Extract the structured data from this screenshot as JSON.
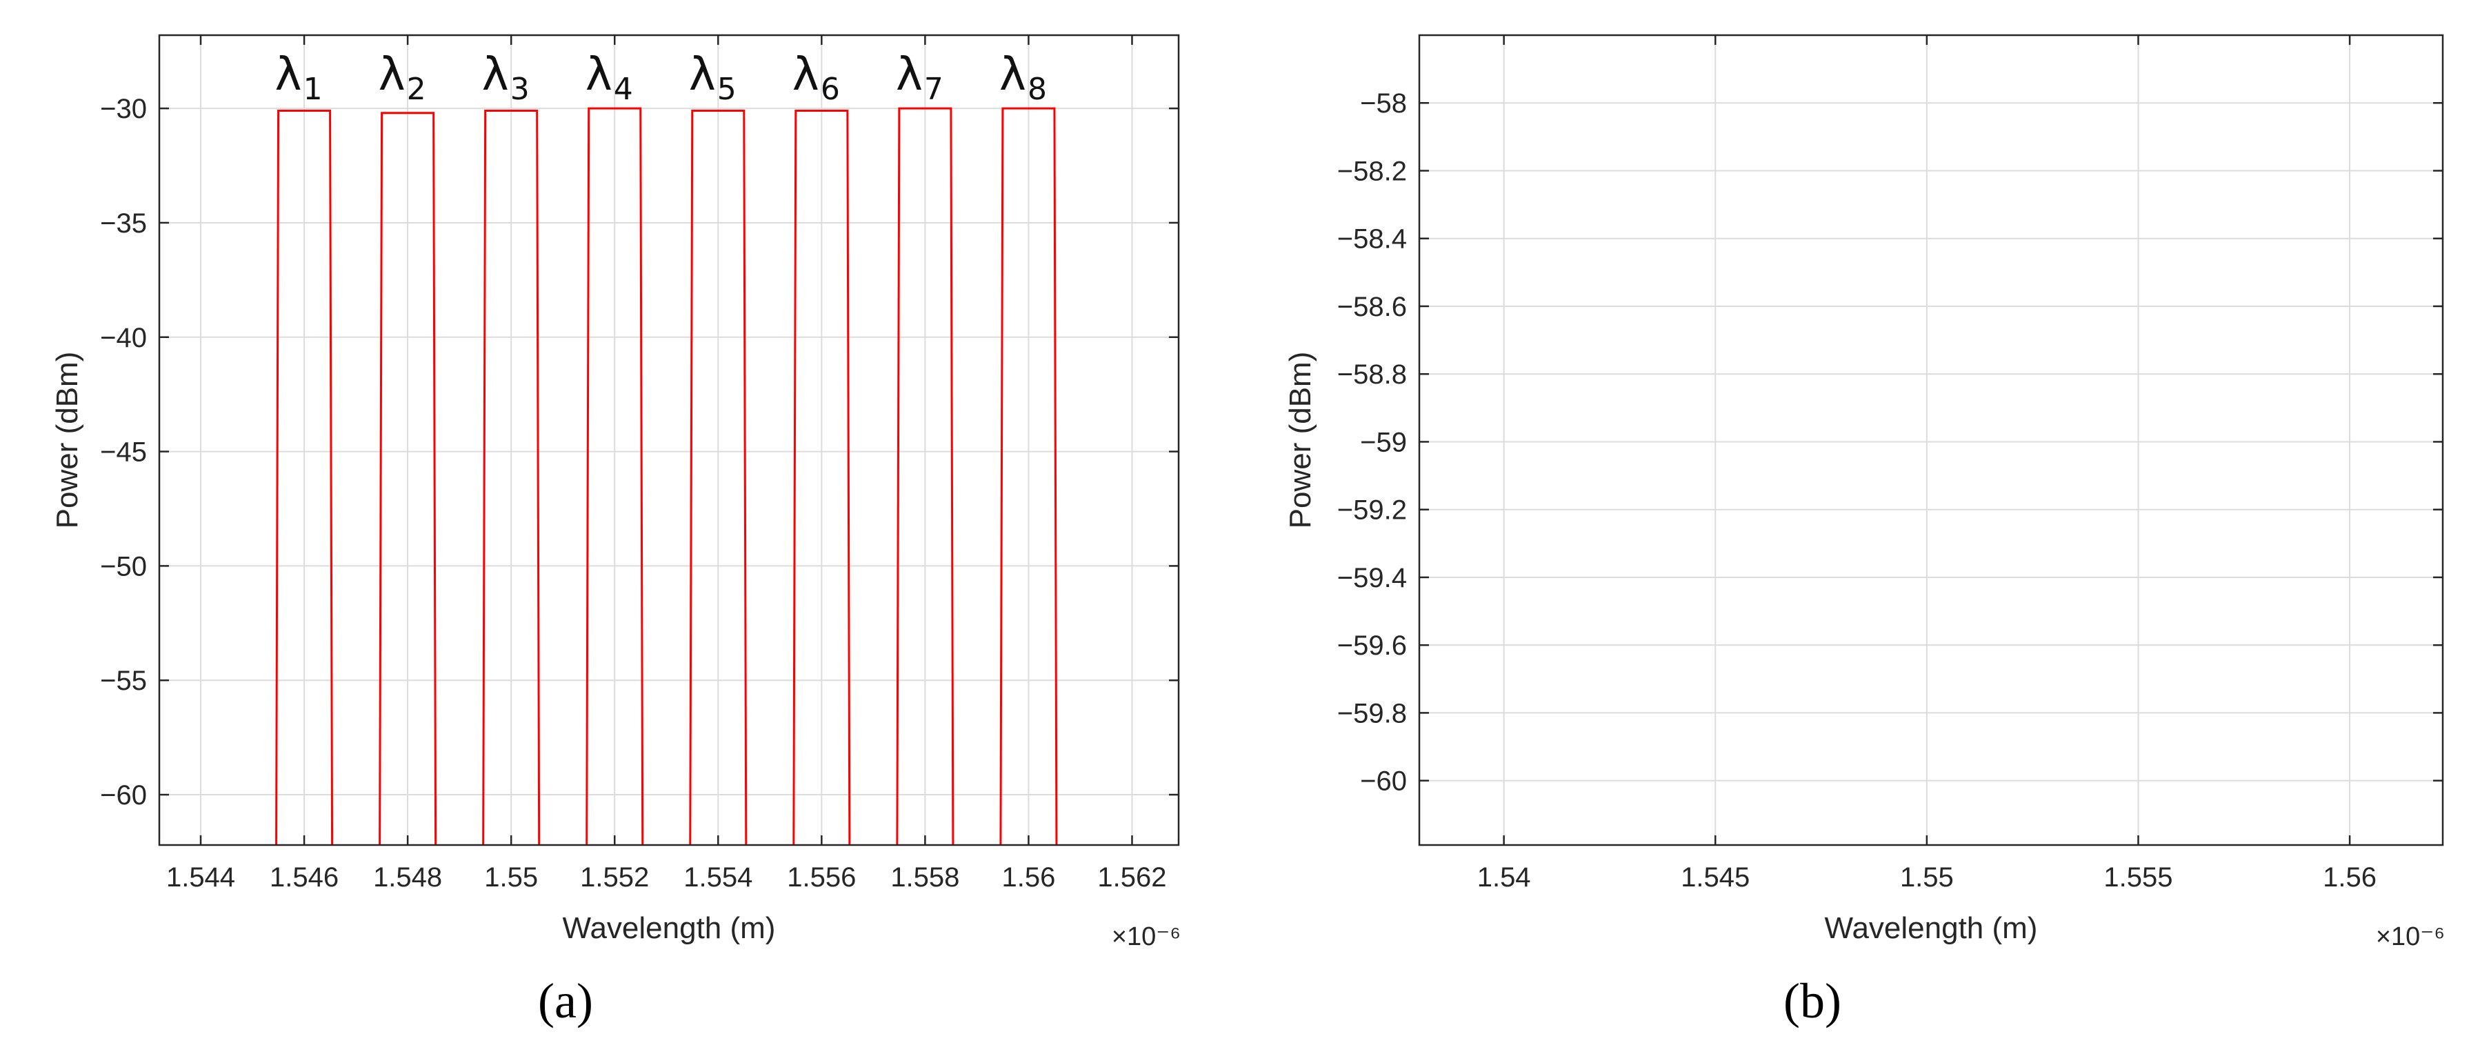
{
  "chart_data": [
    {
      "type": "line",
      "panel": "(a)",
      "xlabel": "Wavelength (m)",
      "ylabel": "Power (dBm)",
      "x_exponent": "×10⁻⁶",
      "xlim": [
        1.5432,
        1.5629
      ],
      "ylim": [
        -62.2,
        -26.8
      ],
      "xticks": [
        1.544,
        1.546,
        1.548,
        1.55,
        1.552,
        1.554,
        1.556,
        1.558,
        1.56,
        1.562
      ],
      "xticklabels": [
        "1.544",
        "1.546",
        "1.548",
        "1.55",
        "1.552",
        "1.554",
        "1.556",
        "1.558",
        "1.56",
        "1.562"
      ],
      "yticks": [
        -30,
        -35,
        -40,
        -45,
        -50,
        -55,
        -60
      ],
      "yticklabels": [
        "−30",
        "−35",
        "−40",
        "−45",
        "−50",
        "−55",
        "−60"
      ],
      "grid": true,
      "color": "#ff0000",
      "channels": [
        {
          "label": "λ",
          "sub": "1",
          "x0": 1.5455,
          "x1": 1.5465,
          "power": -30.1
        },
        {
          "label": "λ",
          "sub": "2",
          "x0": 1.5475,
          "x1": 1.5485,
          "power": -30.2
        },
        {
          "label": "λ",
          "sub": "3",
          "x0": 1.5495,
          "x1": 1.5505,
          "power": -30.1
        },
        {
          "label": "λ",
          "sub": "4",
          "x0": 1.5515,
          "x1": 1.5525,
          "power": -30.0
        },
        {
          "label": "λ",
          "sub": "5",
          "x0": 1.5535,
          "x1": 1.5545,
          "power": -30.1
        },
        {
          "label": "λ",
          "sub": "6",
          "x0": 1.5555,
          "x1": 1.5565,
          "power": -30.1
        },
        {
          "label": "λ",
          "sub": "7",
          "x0": 1.5575,
          "x1": 1.5585,
          "power": -30.0
        },
        {
          "label": "λ",
          "sub": "8",
          "x0": 1.5595,
          "x1": 1.5605,
          "power": -30.0
        }
      ]
    },
    {
      "type": "line",
      "panel": "(b)",
      "xlabel": "Wavelength (m)",
      "ylabel": "Power (dBm)",
      "x_exponent": "×10⁻⁶",
      "xlim": [
        1.538,
        1.5622
      ],
      "ylim": [
        -60.19,
        -57.8
      ],
      "xticks": [
        1.54,
        1.545,
        1.55,
        1.555,
        1.56
      ],
      "xticklabels": [
        "1.54",
        "1.545",
        "1.55",
        "1.555",
        "1.56"
      ],
      "yticks": [
        -58,
        -58.2,
        -58.4,
        -58.6,
        -58.8,
        -59,
        -59.2,
        -59.4,
        -59.6,
        -59.8,
        -60
      ],
      "yticklabels": [
        "−58",
        "−58.2",
        "−58.4",
        "−58.6",
        "−58.8",
        "−59",
        "−59.2",
        "−59.4",
        "−59.6",
        "−59.8",
        "−60"
      ],
      "grid": true,
      "series": []
    }
  ]
}
